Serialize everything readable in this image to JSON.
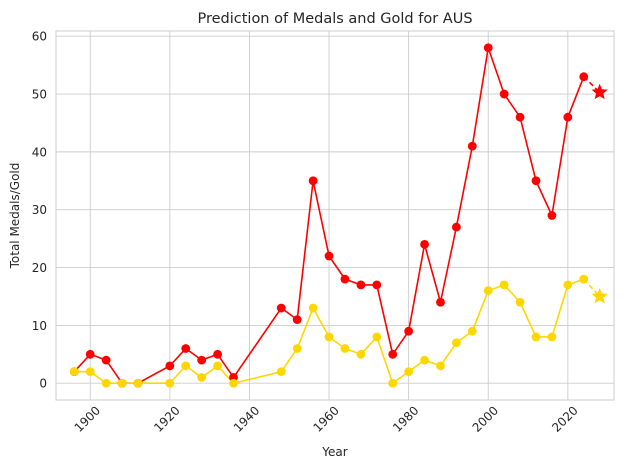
{
  "chart_data": {
    "type": "line",
    "title": "Prediction of Medals and Gold for AUS",
    "xlabel": "Year",
    "ylabel": "Total Medals/Gold",
    "xlim": [
      1891.4,
      2031.6
    ],
    "ylim": [
      -2.9,
      60.9
    ],
    "xticks": [
      1900,
      1920,
      1940,
      1960,
      1980,
      2000,
      2020
    ],
    "yticks": [
      0,
      10,
      20,
      30,
      40,
      50,
      60
    ],
    "grid": true,
    "colors": {
      "total": "#ff0000",
      "gold": "#ffd700"
    },
    "series": [
      {
        "marker": "circle",
        "color": "#ff0000",
        "x": [
          1896,
          1900,
          1904,
          1908,
          1912,
          1920,
          1924,
          1928,
          1932,
          1936,
          1948,
          1952,
          1956,
          1960,
          1964,
          1968,
          1972,
          1976,
          1980,
          1984,
          1988,
          1992,
          1996,
          2000,
          2004,
          2008,
          2012,
          2016,
          2020,
          2024
        ],
        "y": [
          2,
          5,
          4,
          0,
          0,
          3,
          6,
          4,
          5,
          1,
          13,
          11,
          35,
          22,
          18,
          17,
          17,
          5,
          9,
          24,
          14,
          27,
          41,
          58,
          50,
          46,
          35,
          29,
          46,
          53
        ]
      },
      {
        "marker": "circle",
        "color": "#ffd700",
        "x": [
          1896,
          1900,
          1904,
          1908,
          1912,
          1920,
          1924,
          1928,
          1932,
          1936,
          1948,
          1952,
          1956,
          1960,
          1964,
          1968,
          1972,
          1976,
          1980,
          1984,
          1988,
          1992,
          1996,
          2000,
          2004,
          2008,
          2012,
          2016,
          2020,
          2024
        ],
        "y": [
          2,
          2,
          0,
          0,
          0,
          0,
          3,
          1,
          3,
          0,
          2,
          6,
          13,
          8,
          6,
          5,
          8,
          0,
          2,
          4,
          3,
          7,
          9,
          16,
          17,
          14,
          8,
          8,
          17,
          18
        ]
      }
    ],
    "predictions": [
      {
        "color": "#ff0000",
        "marker": "star",
        "from": [
          2024,
          53
        ],
        "to": [
          2028,
          50.3
        ]
      },
      {
        "color": "#ffd700",
        "marker": "star",
        "from": [
          2024,
          18
        ],
        "to": [
          2028,
          15
        ]
      }
    ]
  }
}
